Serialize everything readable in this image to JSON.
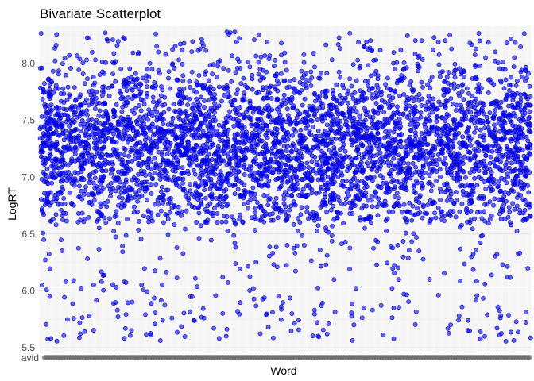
{
  "chart_data": {
    "type": "scatter",
    "title": "Bivariate Scatterplot",
    "xlabel": "Word",
    "ylabel": "LogRT",
    "x_axis_kind": "categorical",
    "x_first_visible_label": "avid",
    "ylim": [
      5.45,
      8.33
    ],
    "y_ticks": [
      5.5,
      6.0,
      6.5,
      7.0,
      7.5,
      8.0
    ],
    "y_tick_labels": [
      "5.5",
      "6.0",
      "6.5",
      "7.0",
      "7.5",
      "8.0"
    ],
    "grid": true,
    "legend": "none",
    "point_color": "#0000ff",
    "point_fill_opacity": 0.6,
    "point_outline_color": "#0000cc",
    "approx_point_count": 4500,
    "approx_category_count": 560,
    "y_distribution": {
      "median": 7.3,
      "spread": 0.38,
      "dense_range": [
        6.6,
        8.28
      ],
      "min": 5.55,
      "max": 8.28
    },
    "sample_points": [
      {
        "y": 5.55
      },
      {
        "y": 5.57
      },
      {
        "y": 5.6
      },
      {
        "y": 5.65
      },
      {
        "y": 5.68
      },
      {
        "y": 5.72
      },
      {
        "y": 5.75
      },
      {
        "y": 5.78
      },
      {
        "y": 5.82
      },
      {
        "y": 5.85
      },
      {
        "y": 5.88
      },
      {
        "y": 5.92
      },
      {
        "y": 5.95
      },
      {
        "y": 6.0
      },
      {
        "y": 6.05
      },
      {
        "y": 6.1
      },
      {
        "y": 6.15
      },
      {
        "y": 6.2
      },
      {
        "y": 6.25
      },
      {
        "y": 6.3
      },
      {
        "y": 6.38
      },
      {
        "y": 6.45
      },
      {
        "y": 6.52
      },
      {
        "y": 6.6
      },
      {
        "y": 6.7
      },
      {
        "y": 6.8
      },
      {
        "y": 6.9
      },
      {
        "y": 7.0
      },
      {
        "y": 7.1
      },
      {
        "y": 7.2
      },
      {
        "y": 7.3
      },
      {
        "y": 7.4
      },
      {
        "y": 7.5
      },
      {
        "y": 7.6
      },
      {
        "y": 7.7
      },
      {
        "y": 7.8
      },
      {
        "y": 7.9
      },
      {
        "y": 8.0
      },
      {
        "y": 8.1
      },
      {
        "y": 8.2
      },
      {
        "y": 8.25
      },
      {
        "y": 8.28
      }
    ]
  }
}
